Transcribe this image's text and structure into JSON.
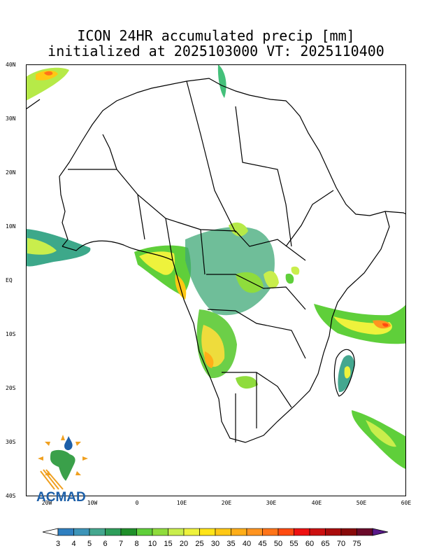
{
  "title": {
    "line1": "ICON 24HR accumulated precip [mm]",
    "line2": "initialized at 2025103000 VT: 2025110400"
  },
  "map": {
    "lat_labels": [
      "40N",
      "30N",
      "20N",
      "10N",
      "EQ",
      "10S",
      "20S",
      "30S",
      "40S"
    ],
    "lon_labels": [
      "20W",
      "10W",
      "0",
      "10E",
      "20E",
      "30E",
      "40E",
      "50E",
      "60E"
    ],
    "lat_range": [
      -40,
      40
    ],
    "lon_range": [
      -25,
      60
    ]
  },
  "colorbar": {
    "labels": [
      "3",
      "4",
      "5",
      "6",
      "7",
      "8",
      "10",
      "15",
      "20",
      "25",
      "30",
      "35",
      "40",
      "45",
      "50",
      "55",
      "60",
      "65",
      "70",
      "75"
    ],
    "colors": [
      "#2f7fc0",
      "#3d94b8",
      "#44a78f",
      "#2e9e5a",
      "#1f8f2a",
      "#5fcf3a",
      "#8fdc3c",
      "#c9ee4c",
      "#eef23c",
      "#ffe418",
      "#ffc814",
      "#ffae18",
      "#ff9420",
      "#ff7418",
      "#ff4a10",
      "#ee1010",
      "#cc1010",
      "#aa0c0c",
      "#880a0a",
      "#6a0a2a",
      "#5a1a8a"
    ],
    "under_color": "#ffffff",
    "over_color": "#5a1a8a"
  },
  "logo": {
    "text": "ACMAD",
    "colors": {
      "africa": "#3aa04a",
      "drop": "#1d5fa8",
      "rays": "#f0a020",
      "text": "#1d5fa8"
    }
  }
}
